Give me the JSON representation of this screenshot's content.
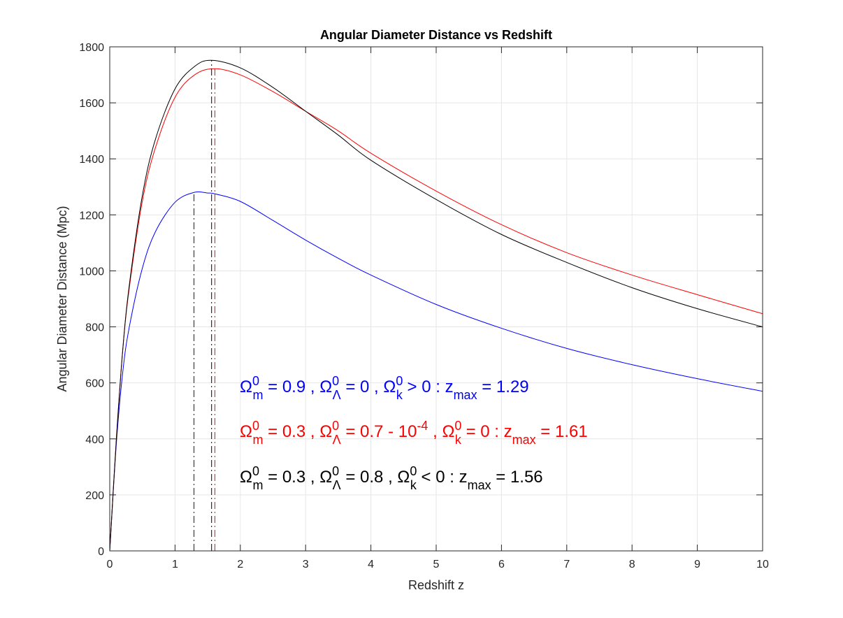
{
  "chart_data": {
    "type": "line",
    "title": "Angular Diameter Distance vs Redshift",
    "xlabel": "Redshift z",
    "ylabel": "Angular Diameter Distance (Mpc)",
    "xlim": [
      0,
      10
    ],
    "ylim": [
      0,
      1800
    ],
    "xticks": [
      0,
      1,
      2,
      3,
      4,
      5,
      6,
      7,
      8,
      9,
      10
    ],
    "yticks": [
      0,
      200,
      400,
      600,
      800,
      1000,
      1200,
      1400,
      1600,
      1800
    ],
    "grid": true,
    "series": [
      {
        "color": "#0000ff",
        "x": [
          0,
          0.1,
          0.2,
          0.3,
          0.5,
          0.7,
          1.0,
          1.29,
          1.5,
          1.61,
          2.0,
          2.5,
          3.0,
          3.5,
          4.0,
          5.0,
          6.0,
          7.0,
          8.0,
          9.0,
          10.0
        ],
        "y": [
          0,
          380,
          640,
          800,
          1010,
          1140,
          1245,
          1280,
          1278,
          1275,
          1248,
          1180,
          1110,
          1045,
          985,
          880,
          795,
          723,
          665,
          615,
          570
        ],
        "zmax": 1.29
      },
      {
        "color": "#ff0000",
        "x": [
          0,
          0.1,
          0.2,
          0.3,
          0.5,
          0.7,
          1.0,
          1.3,
          1.61,
          2.0,
          2.5,
          3.0,
          3.5,
          4.0,
          5.0,
          6.0,
          7.0,
          8.0,
          9.0,
          10.0
        ],
        "y": [
          0,
          395,
          720,
          940,
          1250,
          1440,
          1620,
          1700,
          1722,
          1700,
          1640,
          1570,
          1500,
          1420,
          1285,
          1165,
          1065,
          985,
          915,
          847
        ],
        "zmax": 1.61
      },
      {
        "color": "#000000",
        "x": [
          0,
          0.1,
          0.2,
          0.3,
          0.5,
          0.7,
          1.0,
          1.3,
          1.56,
          2.0,
          2.5,
          3.0,
          3.5,
          4.0,
          5.0,
          6.0,
          7.0,
          8.0,
          9.0,
          10.0
        ],
        "y": [
          0,
          395,
          720,
          950,
          1270,
          1470,
          1650,
          1730,
          1752,
          1725,
          1655,
          1570,
          1485,
          1395,
          1255,
          1130,
          1030,
          940,
          865,
          800
        ],
        "zmax": 1.56
      }
    ],
    "annotations": [
      {
        "color": "#0000ff",
        "parts": [
          {
            "t": "Ω"
          },
          {
            "t": "0",
            "s": "sup"
          },
          {
            "t": "m",
            "s": "sub"
          },
          {
            "t": " = 0.9 , Ω"
          },
          {
            "t": "0",
            "s": "sup"
          },
          {
            "t": "Λ",
            "s": "sub"
          },
          {
            "t": " = 0 , Ω"
          },
          {
            "t": "0",
            "s": "sup"
          },
          {
            "t": "k",
            "s": "sub"
          },
          {
            "t": " > 0 : z"
          },
          {
            "t": "max",
            "s": "sub"
          },
          {
            "t": " = 1.29"
          }
        ]
      },
      {
        "color": "#ff0000",
        "parts": [
          {
            "t": "Ω"
          },
          {
            "t": "0",
            "s": "sup"
          },
          {
            "t": "m",
            "s": "sub"
          },
          {
            "t": " = 0.3 , Ω"
          },
          {
            "t": "0",
            "s": "sup"
          },
          {
            "t": "Λ",
            "s": "sub"
          },
          {
            "t": " = 0.7 - 10"
          },
          {
            "t": "-4",
            "s": "sup"
          },
          {
            "t": " , Ω"
          },
          {
            "t": "0",
            "s": "sup"
          },
          {
            "t": "k",
            "s": "sub"
          },
          {
            "t": " = 0 : z"
          },
          {
            "t": "max",
            "s": "sub"
          },
          {
            "t": " = 1.61"
          }
        ]
      },
      {
        "color": "#000000",
        "parts": [
          {
            "t": "Ω"
          },
          {
            "t": "0",
            "s": "sup"
          },
          {
            "t": "m",
            "s": "sub"
          },
          {
            "t": " = 0.3 , Ω"
          },
          {
            "t": "0",
            "s": "sup"
          },
          {
            "t": "Λ",
            "s": "sub"
          },
          {
            "t": " = 0.8 , Ω"
          },
          {
            "t": "0",
            "s": "sup"
          },
          {
            "t": "k",
            "s": "sub"
          },
          {
            "t": " < 0 : z"
          },
          {
            "t": "max",
            "s": "sub"
          },
          {
            "t": " = 1.56"
          }
        ]
      }
    ]
  }
}
